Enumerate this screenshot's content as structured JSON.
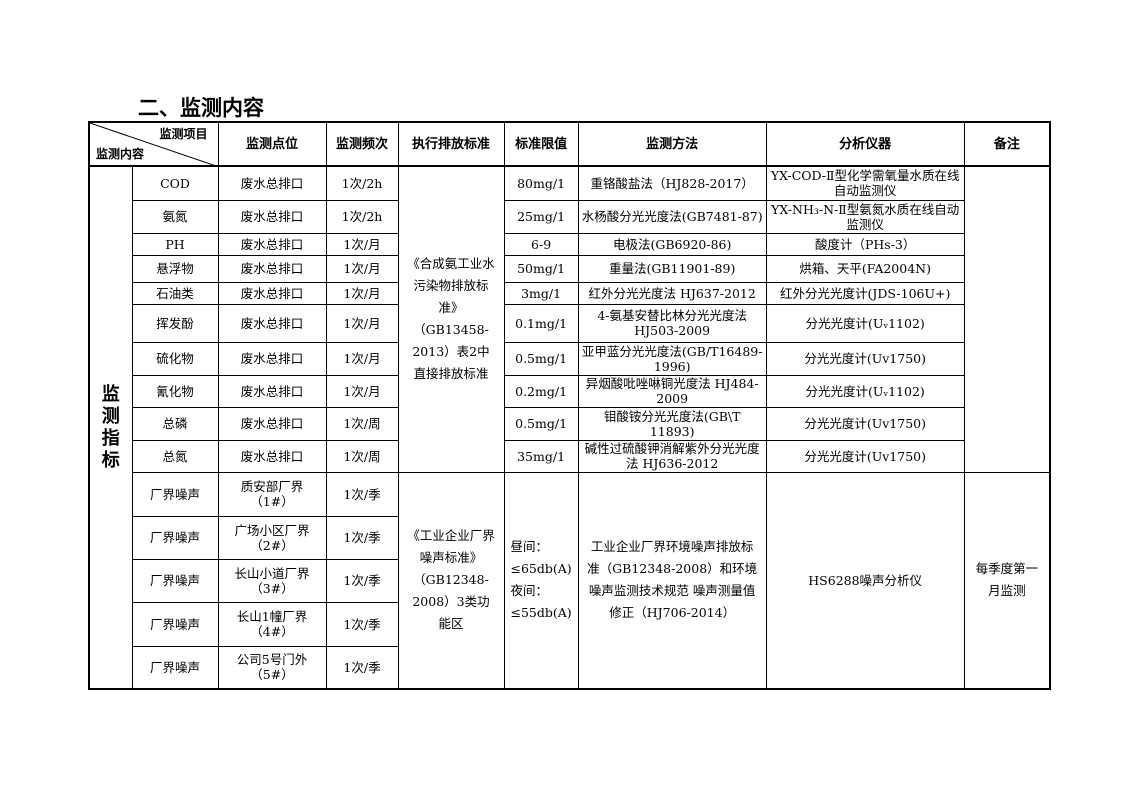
{
  "title": "二、监测内容",
  "header": {
    "item": "监测项目",
    "content": "监测内容",
    "point": "监测点位",
    "frequency": "监测频次",
    "standard": "执行排放标准",
    "limit": "标准限值",
    "method": "监测方法",
    "instrument": "分析仪器",
    "remark": "备注"
  },
  "group_label": "监测指标",
  "water": {
    "standard": "《合成氨工业水污染物排放标准》（GB13458-2013）表2中直接排放标准",
    "remark": "",
    "rows": [
      {
        "item": "COD",
        "point": "废水总排口",
        "freq": "1次/2h",
        "limit": "80mg/1",
        "method": "重铬酸盐法（HJ828-2017）",
        "instrument": "YX-COD-Ⅱ型化学需氧量水质在线自动监测仪"
      },
      {
        "item": "氨氮",
        "point": "废水总排口",
        "freq": "1次/2h",
        "limit": "25mg/1",
        "method": "水杨酸分光光度法(GB7481-87)",
        "instrument": "YX-NH₃-N-Ⅱ型氨氮水质在线自动监测仪"
      },
      {
        "item": "PH",
        "point": "废水总排口",
        "freq": "1次/月",
        "limit": "6-9",
        "method": "电极法(GB6920-86)",
        "instrument": "酸度计（PHs-3）"
      },
      {
        "item": "悬浮物",
        "point": "废水总排口",
        "freq": "1次/月",
        "limit": "50mg/1",
        "method": "重量法(GB11901-89)",
        "instrument": "烘箱、天平(FA2004N)"
      },
      {
        "item": "石油类",
        "point": "废水总排口",
        "freq": "1次/月",
        "limit": "3mg/1",
        "method": "红外分光光度法 HJ637-2012",
        "instrument": "红外分光光度计(JDS-106U+)"
      },
      {
        "item": "挥发酚",
        "point": "废水总排口",
        "freq": "1次/月",
        "limit": "0.1mg/1",
        "method": "4-氨基安替比林分光光度法 HJ503-2009",
        "instrument": "分光光度计(Uᵥ1102)"
      },
      {
        "item": "硫化物",
        "point": "废水总排口",
        "freq": "1次/月",
        "limit": "0.5mg/1",
        "method": "亚甲蓝分光光度法(GB/T16489-1996)",
        "instrument": "分光光度计(Uv1750)"
      },
      {
        "item": "氰化物",
        "point": "废水总排口",
        "freq": "1次/月",
        "limit": "0.2mg/1",
        "method": "异烟酸吡唑啉铜光度法 HJ484-2009",
        "instrument": "分光光度计(Uᵥ1102)"
      },
      {
        "item": "总磷",
        "point": "废水总排口",
        "freq": "1次/周",
        "limit": "0.5mg/1",
        "method": "钼酸铵分光光度法(GB\\T 11893)",
        "instrument": "分光光度计(Uv1750)"
      },
      {
        "item": "总氮",
        "point": "废水总排口",
        "freq": "1次/周",
        "limit": "35mg/1",
        "method": "碱性过硫酸钾消解紫外分光光度法 HJ636-2012",
        "instrument": "分光光度计(Uv1750)"
      }
    ]
  },
  "noise": {
    "standard": "《工业企业厂界噪声标准》（GB12348-2008）3类功能区",
    "limit": "昼间：≤65db(A) 夜间：≤55db(A)",
    "method": "工业企业厂界环境噪声排放标准（GB12348-2008）和环境噪声监测技术规范 噪声测量值修正（HJ706-2014）",
    "instrument": "HS6288噪声分析仪",
    "remark": "每季度第一月监测",
    "rows": [
      {
        "item": "厂界噪声",
        "point": "质安部厂界（1#）",
        "freq": "1次/季"
      },
      {
        "item": "厂界噪声",
        "point": "广场小区厂界（2#）",
        "freq": "1次/季"
      },
      {
        "item": "厂界噪声",
        "point": "长山小道厂界（3#）",
        "freq": "1次/季"
      },
      {
        "item": "厂界噪声",
        "point": "长山1幢厂界（4#）",
        "freq": "1次/季"
      },
      {
        "item": "厂界噪声",
        "point": "公司5号门外（5#）",
        "freq": "1次/季"
      }
    ]
  }
}
